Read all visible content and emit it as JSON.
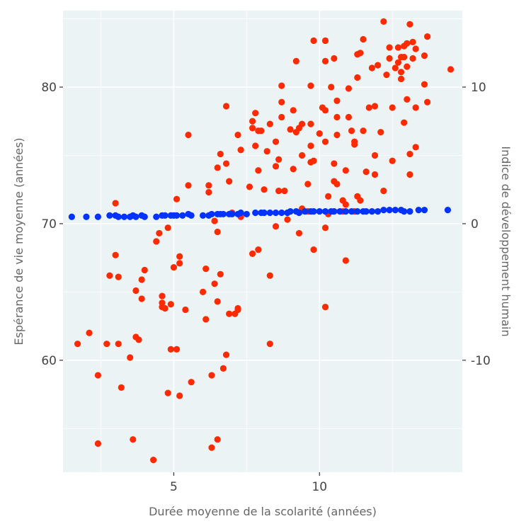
{
  "chart_data": {
    "type": "scatter",
    "xlabel": "Durée moyenne de la scolarité (années)",
    "ylabel_left": "Espérance de vie moyenne (années)",
    "ylabel_right": "Indice de développement humain",
    "xlim": [
      1.2,
      14.9
    ],
    "ylim_left": [
      51.8,
      85.6
    ],
    "ylim_right": [
      -18.2,
      15.6
    ],
    "x_ticks": [
      5,
      10
    ],
    "y_ticks_left": [
      60,
      70,
      80
    ],
    "y_ticks_right": [
      -10,
      0,
      10
    ],
    "grid": true,
    "colors": {
      "panel": "#ebf3f5",
      "grid": "#ffffff",
      "life_expectancy": "#ff2a00",
      "hdi": "#0033ff"
    },
    "series": [
      {
        "axis": "left",
        "color": "#ff2a00",
        "points": [
          [
            1.7,
            61.2
          ],
          [
            2.1,
            62.0
          ],
          [
            2.4,
            58.9
          ],
          [
            2.4,
            53.9
          ],
          [
            2.7,
            61.2
          ],
          [
            2.8,
            66.2
          ],
          [
            3.0,
            71.5
          ],
          [
            3.0,
            67.7
          ],
          [
            3.1,
            61.2
          ],
          [
            3.1,
            66.1
          ],
          [
            3.2,
            58.0
          ],
          [
            3.5,
            60.2
          ],
          [
            3.6,
            54.2
          ],
          [
            3.7,
            61.7
          ],
          [
            3.7,
            65.1
          ],
          [
            3.8,
            61.5
          ],
          [
            3.9,
            64.5
          ],
          [
            3.9,
            65.9
          ],
          [
            4.0,
            66.6
          ],
          [
            4.3,
            52.7
          ],
          [
            4.4,
            68.7
          ],
          [
            4.5,
            69.3
          ],
          [
            4.6,
            64.7
          ],
          [
            4.6,
            64.2
          ],
          [
            4.6,
            63.9
          ],
          [
            4.7,
            63.8
          ],
          [
            4.8,
            57.6
          ],
          [
            4.8,
            69.7
          ],
          [
            4.9,
            60.8
          ],
          [
            4.9,
            64.1
          ],
          [
            5.0,
            66.8
          ],
          [
            5.1,
            71.8
          ],
          [
            5.1,
            60.8
          ],
          [
            5.2,
            57.4
          ],
          [
            5.2,
            67.6
          ],
          [
            5.2,
            67.1
          ],
          [
            5.4,
            63.7
          ],
          [
            5.5,
            76.5
          ],
          [
            5.5,
            72.8
          ],
          [
            5.6,
            58.4
          ],
          [
            6.0,
            65.0
          ],
          [
            6.1,
            66.7
          ],
          [
            6.1,
            63.0
          ],
          [
            6.2,
            72.3
          ],
          [
            6.2,
            72.8
          ],
          [
            6.3,
            53.6
          ],
          [
            6.3,
            58.9
          ],
          [
            6.4,
            65.6
          ],
          [
            6.4,
            70.2
          ],
          [
            6.5,
            74.1
          ],
          [
            6.5,
            69.4
          ],
          [
            6.5,
            54.2
          ],
          [
            6.5,
            64.3
          ],
          [
            6.6,
            75.1
          ],
          [
            6.6,
            66.3
          ],
          [
            6.7,
            59.4
          ],
          [
            6.8,
            74.4
          ],
          [
            6.8,
            78.6
          ],
          [
            6.8,
            60.4
          ],
          [
            6.9,
            73.1
          ],
          [
            6.9,
            63.4
          ],
          [
            7.0,
            70.8
          ],
          [
            7.1,
            63.4
          ],
          [
            7.2,
            63.7
          ],
          [
            7.2,
            63.8
          ],
          [
            7.2,
            76.5
          ],
          [
            7.3,
            75.4
          ],
          [
            7.3,
            70.5
          ],
          [
            7.6,
            72.7
          ],
          [
            7.7,
            77.5
          ],
          [
            7.7,
            77.0
          ],
          [
            7.7,
            67.8
          ],
          [
            7.8,
            78.1
          ],
          [
            7.8,
            75.7
          ],
          [
            7.9,
            76.8
          ],
          [
            7.9,
            73.9
          ],
          [
            7.9,
            68.1
          ],
          [
            8.0,
            76.8
          ],
          [
            8.1,
            72.5
          ],
          [
            8.2,
            75.3
          ],
          [
            8.3,
            77.3
          ],
          [
            8.3,
            66.2
          ],
          [
            8.3,
            61.2
          ],
          [
            8.5,
            76.0
          ],
          [
            8.5,
            74.2
          ],
          [
            8.5,
            69.8
          ],
          [
            8.6,
            74.7
          ],
          [
            8.6,
            72.4
          ],
          [
            8.7,
            80.1
          ],
          [
            8.7,
            78.9
          ],
          [
            8.7,
            77.8
          ],
          [
            8.8,
            72.4
          ],
          [
            8.9,
            70.8
          ],
          [
            8.9,
            70.3
          ],
          [
            9.0,
            76.9
          ],
          [
            9.1,
            78.3
          ],
          [
            9.1,
            74.0
          ],
          [
            9.2,
            76.7
          ],
          [
            9.2,
            81.9
          ],
          [
            9.3,
            77.0
          ],
          [
            9.3,
            69.3
          ],
          [
            9.4,
            77.3
          ],
          [
            9.4,
            71.1
          ],
          [
            9.4,
            75.0
          ],
          [
            9.6,
            72.9
          ],
          [
            9.6,
            70.9
          ],
          [
            9.7,
            75.7
          ],
          [
            9.7,
            77.3
          ],
          [
            9.7,
            74.5
          ],
          [
            9.7,
            80.1
          ],
          [
            9.8,
            83.4
          ],
          [
            9.8,
            74.6
          ],
          [
            9.8,
            68.1
          ],
          [
            10.0,
            76.6
          ],
          [
            10.1,
            78.5
          ],
          [
            10.2,
            83.4
          ],
          [
            10.2,
            81.9
          ],
          [
            10.2,
            63.9
          ],
          [
            10.2,
            78.3
          ],
          [
            10.2,
            76.0
          ],
          [
            10.2,
            69.7
          ],
          [
            10.3,
            72.0
          ],
          [
            10.3,
            70.7
          ],
          [
            10.4,
            80.0
          ],
          [
            10.5,
            82.1
          ],
          [
            10.5,
            74.4
          ],
          [
            10.5,
            73.1
          ],
          [
            10.6,
            72.9
          ],
          [
            10.6,
            77.8
          ],
          [
            10.6,
            79.0
          ],
          [
            10.6,
            76.5
          ],
          [
            10.8,
            71.7
          ],
          [
            10.8,
            70.9
          ],
          [
            10.9,
            67.3
          ],
          [
            10.9,
            73.9
          ],
          [
            10.9,
            71.4
          ],
          [
            11.0,
            79.9
          ],
          [
            11.0,
            77.8
          ],
          [
            11.1,
            76.8
          ],
          [
            11.2,
            76.0
          ],
          [
            11.2,
            75.8
          ],
          [
            11.2,
            70.9
          ],
          [
            11.3,
            82.4
          ],
          [
            11.3,
            80.7
          ],
          [
            11.3,
            72.0
          ],
          [
            11.4,
            82.5
          ],
          [
            11.4,
            71.7
          ],
          [
            11.5,
            83.5
          ],
          [
            11.5,
            76.8
          ],
          [
            11.6,
            73.8
          ],
          [
            11.7,
            78.5
          ],
          [
            11.8,
            81.4
          ],
          [
            11.9,
            78.6
          ],
          [
            11.9,
            75.0
          ],
          [
            11.9,
            73.6
          ],
          [
            12.0,
            81.6
          ],
          [
            12.1,
            76.7
          ],
          [
            12.2,
            84.8
          ],
          [
            12.2,
            72.4
          ],
          [
            12.3,
            80.9
          ],
          [
            12.4,
            82.9
          ],
          [
            12.4,
            82.1
          ],
          [
            12.5,
            74.6
          ],
          [
            12.5,
            78.5
          ],
          [
            12.6,
            81.4
          ],
          [
            12.7,
            82.9
          ],
          [
            12.7,
            81.8
          ],
          [
            12.8,
            80.6
          ],
          [
            12.8,
            81.1
          ],
          [
            12.8,
            82.2
          ],
          [
            12.9,
            83.0
          ],
          [
            12.9,
            82.2
          ],
          [
            12.9,
            77.4
          ],
          [
            13.0,
            81.5
          ],
          [
            13.0,
            83.2
          ],
          [
            13.0,
            79.1
          ],
          [
            13.1,
            84.6
          ],
          [
            13.1,
            75.1
          ],
          [
            13.1,
            73.6
          ],
          [
            13.2,
            82.1
          ],
          [
            13.2,
            83.3
          ],
          [
            13.3,
            82.8
          ],
          [
            13.3,
            78.5
          ],
          [
            13.3,
            75.6
          ],
          [
            13.6,
            82.3
          ],
          [
            13.6,
            80.2
          ],
          [
            13.7,
            83.7
          ],
          [
            13.7,
            78.9
          ],
          [
            14.5,
            81.3
          ]
        ]
      },
      {
        "axis": "right",
        "color": "#0033ff",
        "points": [
          [
            1.5,
            0.5
          ],
          [
            2.0,
            0.5
          ],
          [
            2.4,
            0.5
          ],
          [
            2.8,
            0.6
          ],
          [
            3.0,
            0.6
          ],
          [
            3.1,
            0.5
          ],
          [
            3.3,
            0.5
          ],
          [
            3.5,
            0.5
          ],
          [
            3.6,
            0.6
          ],
          [
            3.7,
            0.5
          ],
          [
            3.9,
            0.6
          ],
          [
            4.0,
            0.5
          ],
          [
            4.4,
            0.5
          ],
          [
            4.6,
            0.6
          ],
          [
            4.7,
            0.6
          ],
          [
            4.9,
            0.6
          ],
          [
            5.0,
            0.6
          ],
          [
            5.1,
            0.6
          ],
          [
            5.3,
            0.6
          ],
          [
            5.5,
            0.7
          ],
          [
            5.6,
            0.6
          ],
          [
            6.0,
            0.6
          ],
          [
            6.2,
            0.6
          ],
          [
            6.3,
            0.7
          ],
          [
            6.5,
            0.7
          ],
          [
            6.6,
            0.7
          ],
          [
            6.7,
            0.7
          ],
          [
            6.9,
            0.7
          ],
          [
            7.0,
            0.7
          ],
          [
            7.2,
            0.7
          ],
          [
            7.3,
            0.8
          ],
          [
            7.5,
            0.7
          ],
          [
            7.8,
            0.8
          ],
          [
            8.0,
            0.8
          ],
          [
            8.1,
            0.8
          ],
          [
            8.3,
            0.8
          ],
          [
            8.5,
            0.8
          ],
          [
            8.7,
            0.8
          ],
          [
            8.9,
            0.8
          ],
          [
            9.0,
            0.9
          ],
          [
            9.2,
            0.9
          ],
          [
            9.3,
            0.8
          ],
          [
            9.5,
            0.9
          ],
          [
            9.7,
            0.9
          ],
          [
            9.8,
            0.9
          ],
          [
            10.0,
            0.9
          ],
          [
            10.2,
            0.9
          ],
          [
            10.4,
            0.9
          ],
          [
            10.5,
            0.9
          ],
          [
            10.7,
            0.9
          ],
          [
            10.9,
            0.9
          ],
          [
            11.1,
            0.9
          ],
          [
            11.3,
            0.9
          ],
          [
            11.5,
            0.9
          ],
          [
            11.6,
            0.9
          ],
          [
            11.8,
            0.9
          ],
          [
            12.0,
            0.9
          ],
          [
            12.2,
            1.0
          ],
          [
            12.4,
            1.0
          ],
          [
            12.6,
            1.0
          ],
          [
            12.8,
            1.0
          ],
          [
            12.9,
            0.9
          ],
          [
            13.1,
            0.9
          ],
          [
            13.4,
            1.0
          ],
          [
            13.6,
            1.0
          ],
          [
            14.4,
            1.0
          ]
        ]
      }
    ]
  }
}
